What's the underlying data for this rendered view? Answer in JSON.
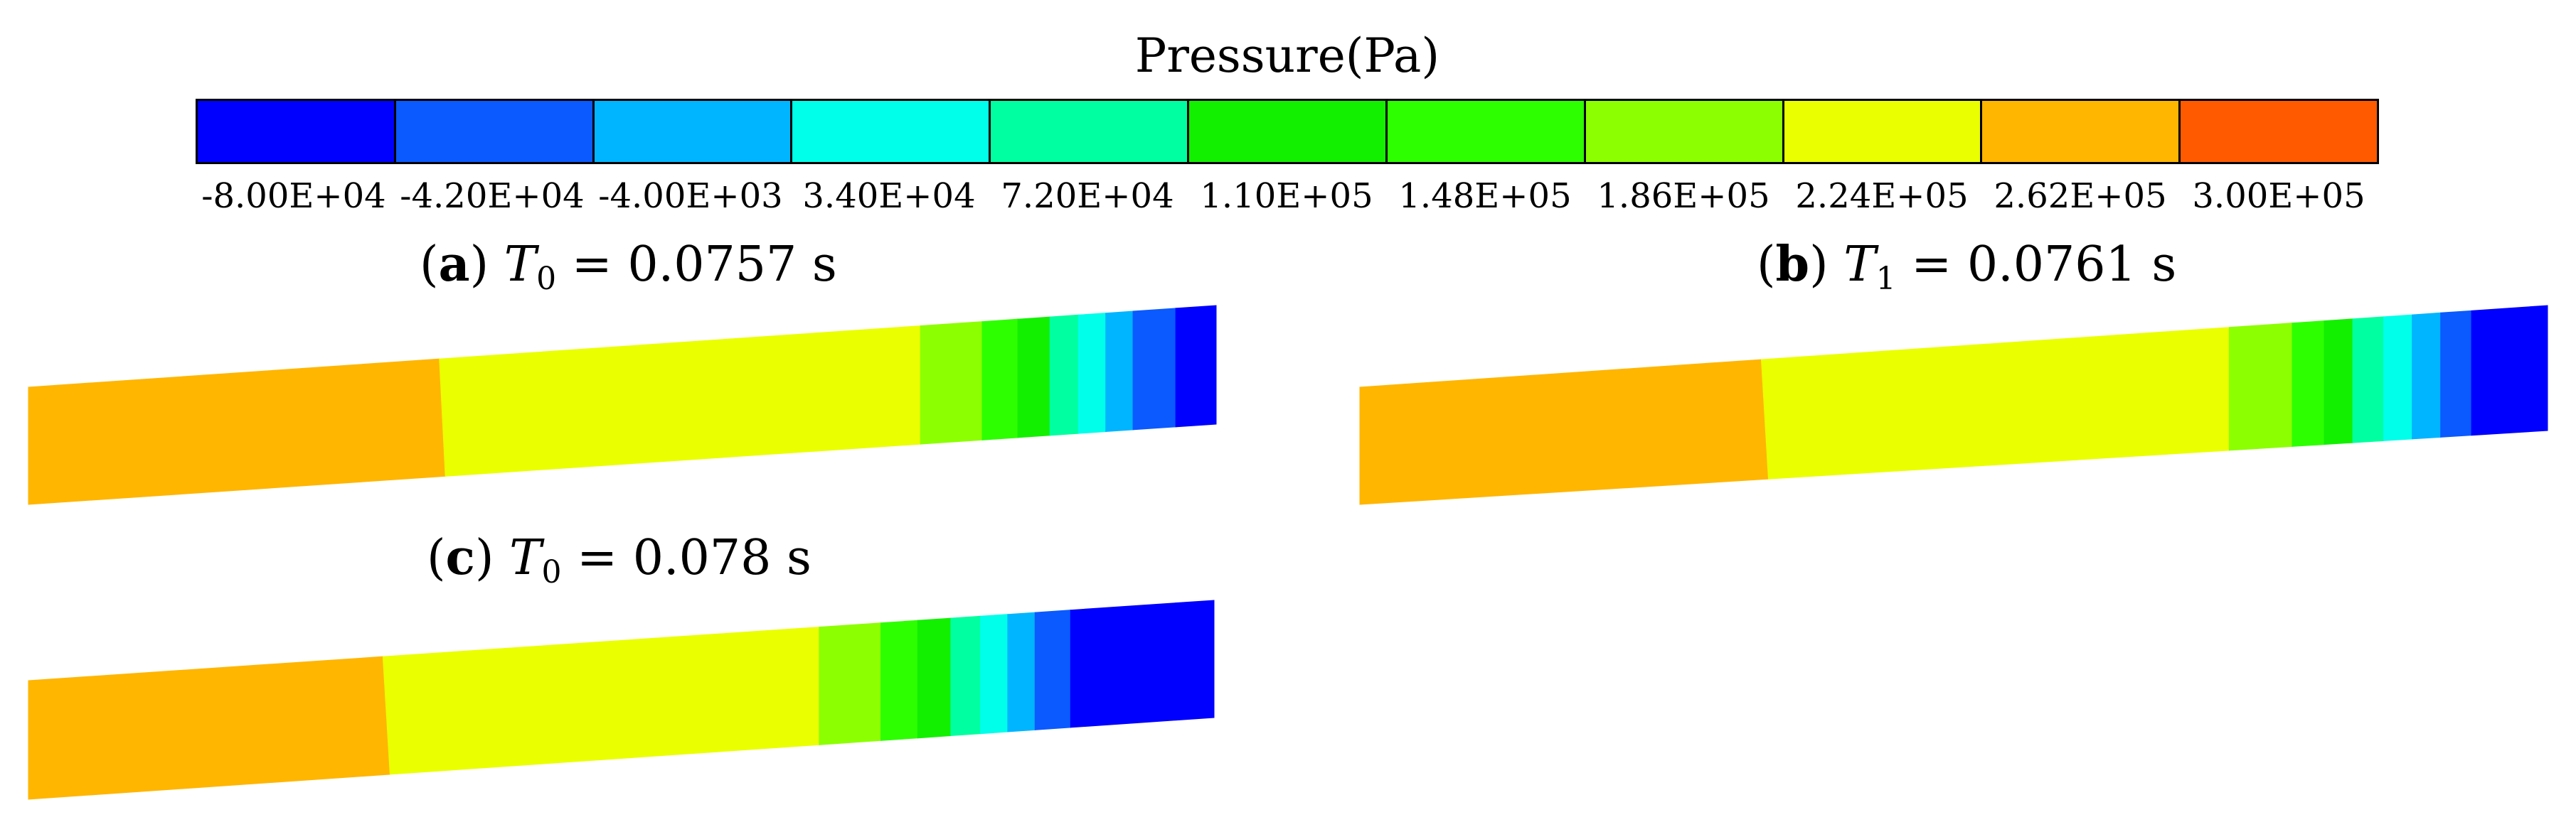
{
  "legend": {
    "title": "Pressure(Pa)",
    "colors": [
      "#0000ff",
      "#0a5aff",
      "#00b5ff",
      "#00ffea",
      "#00ffa0",
      "#12f000",
      "#2dff00",
      "#8cff00",
      "#eaff00",
      "#ffb600",
      "#ff5a00",
      "#ff0000"
    ],
    "tick_labels": [
      "-8.00E+04",
      "-4.20E+04",
      "-4.00E+03",
      "3.40E+04",
      "7.20E+04",
      "1.10E+05",
      "1.48E+05",
      "1.86E+05",
      "2.24E+05",
      "2.62E+05",
      "3.00E+05"
    ]
  },
  "panels": [
    {
      "letter": "a",
      "symbol": "T",
      "subscript": "0",
      "equals": "=",
      "value": "0.0757 s",
      "bands": [
        {
          "color": "#ffb600",
          "t0": 0.0,
          "t1": 0.346,
          "b1": 0.351
        },
        {
          "color": "#eaff00",
          "t0": 0.346,
          "b0": 0.351,
          "t1": 0.751
        },
        {
          "color": "#8cff00",
          "t0": 0.751,
          "t1": 0.803
        },
        {
          "color": "#2dff00",
          "t0": 0.803,
          "t1": 0.833
        },
        {
          "color": "#12f000",
          "t0": 0.833,
          "t1": 0.86
        },
        {
          "color": "#00ffa0",
          "t0": 0.86,
          "t1": 0.884
        },
        {
          "color": "#00ffea",
          "t0": 0.884,
          "t1": 0.907
        },
        {
          "color": "#00b5ff",
          "t0": 0.907,
          "t1": 0.93
        },
        {
          "color": "#0a5aff",
          "t0": 0.93,
          "t1": 0.966
        },
        {
          "color": "#0000ff",
          "t0": 0.966,
          "t1": 1.0
        }
      ]
    },
    {
      "letter": "b",
      "symbol": "T",
      "subscript": "1",
      "equals": "=",
      "value": "0.0761 s",
      "bands": [
        {
          "color": "#ffb600",
          "t0": 0.0,
          "t1": 0.338,
          "b1": 0.344
        },
        {
          "color": "#eaff00",
          "t0": 0.338,
          "b0": 0.344,
          "t1": 0.732
        },
        {
          "color": "#8cff00",
          "t0": 0.732,
          "t1": 0.785
        },
        {
          "color": "#2dff00",
          "t0": 0.785,
          "t1": 0.812
        },
        {
          "color": "#12f000",
          "t0": 0.812,
          "t1": 0.836
        },
        {
          "color": "#00ffa0",
          "t0": 0.836,
          "t1": 0.862
        },
        {
          "color": "#00ffea",
          "t0": 0.862,
          "t1": 0.886
        },
        {
          "color": "#00b5ff",
          "t0": 0.886,
          "t1": 0.91
        },
        {
          "color": "#0a5aff",
          "t0": 0.91,
          "t1": 0.936
        },
        {
          "color": "#0000ff",
          "t0": 0.936,
          "t1": 1.0
        }
      ]
    },
    {
      "letter": "c",
      "symbol": "T",
      "subscript": "0",
      "equals": "=",
      "value": "0.078 s",
      "bands": [
        {
          "color": "#ffb600",
          "t0": 0.0,
          "t1": 0.299,
          "b1": 0.305
        },
        {
          "color": "#eaff00",
          "t0": 0.299,
          "b0": 0.305,
          "t1": 0.667
        },
        {
          "color": "#8cff00",
          "t0": 0.667,
          "t1": 0.719
        },
        {
          "color": "#2dff00",
          "t0": 0.719,
          "t1": 0.75
        },
        {
          "color": "#12f000",
          "t0": 0.75,
          "t1": 0.778
        },
        {
          "color": "#00ffa0",
          "t0": 0.778,
          "t1": 0.803
        },
        {
          "color": "#00ffea",
          "t0": 0.803,
          "t1": 0.826
        },
        {
          "color": "#00b5ff",
          "t0": 0.826,
          "t1": 0.849
        },
        {
          "color": "#0a5aff",
          "t0": 0.849,
          "t1": 0.879
        },
        {
          "color": "#0000ff",
          "t0": 0.879,
          "t1": 1.0
        }
      ]
    }
  ]
}
